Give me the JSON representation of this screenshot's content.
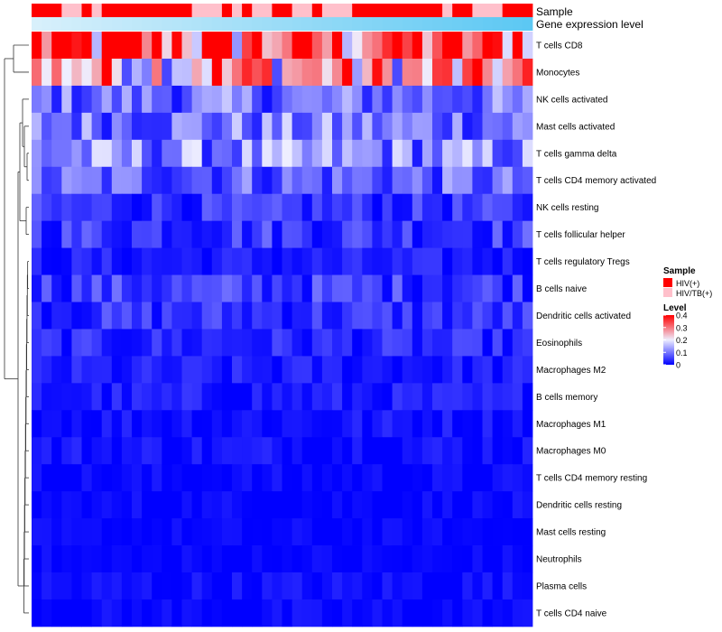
{
  "chart_data": {
    "type": "heatmap",
    "annotation_tracks": [
      "Sample",
      "Gene expression level"
    ],
    "rows": [
      "T cells CD8",
      "Monocytes",
      "NK cells activated",
      "Mast cells activated",
      "T cells gamma delta",
      "T cells CD4 memory activated",
      "NK cells resting",
      "T cells follicular helper",
      "T cells regulatory  Tregs",
      "B cells naive",
      "Dendritic cells activated",
      "Eosinophils",
      "Macrophages M2",
      "B cells memory",
      "Macrophages M1",
      "Macrophages M0",
      "T cells CD4 memory resting",
      "Dendritic cells resting",
      "Mast cells resting",
      "Neutrophils",
      "Plasma cells",
      "T cells CD4 naive"
    ],
    "row_base": [
      0.3,
      0.24,
      0.09,
      0.1,
      0.11,
      0.08,
      0.04,
      0.05,
      0.02,
      0.05,
      0.04,
      0.03,
      0.02,
      0.02,
      0.015,
      0.015,
      0.005,
      0.005,
      0.002,
      0.002,
      0.01,
      0.005
    ],
    "n_columns": 50,
    "sample_groups": {
      "hiv_cols": [
        0,
        1,
        2,
        5,
        7,
        8,
        9,
        10,
        11,
        12,
        13,
        14,
        15,
        19,
        21,
        24,
        25,
        28,
        32,
        33,
        34,
        35,
        36,
        37,
        38,
        39,
        40,
        42,
        43,
        47,
        48,
        49
      ],
      "hiv_tb_cols": [
        3,
        4,
        6,
        16,
        17,
        18,
        20,
        22,
        23,
        26,
        27,
        29,
        30,
        31,
        41,
        44,
        45,
        46
      ]
    },
    "color_scale": {
      "low": "#0000ff",
      "mid": "#eeeeff",
      "high": "#ff0000",
      "domain": [
        0,
        0.4
      ],
      "mid_value": 0.2
    },
    "legend": {
      "sample_title": "Sample",
      "sample_entries": [
        {
          "label": "HIV(+)",
          "color": "#ff0000"
        },
        {
          "label": "HIV/TB(+)",
          "color": "#ffc0cb"
        }
      ],
      "level_title": "Level",
      "level_ticks": [
        "0.4",
        "0.3",
        "0.2",
        "0.1",
        "0"
      ],
      "level_tick_values": [
        0.4,
        0.3,
        0.2,
        0.1,
        0
      ]
    },
    "expr_colors": [
      "#d8f0fb",
      "#5cc8f3"
    ],
    "dendrogram": true
  }
}
